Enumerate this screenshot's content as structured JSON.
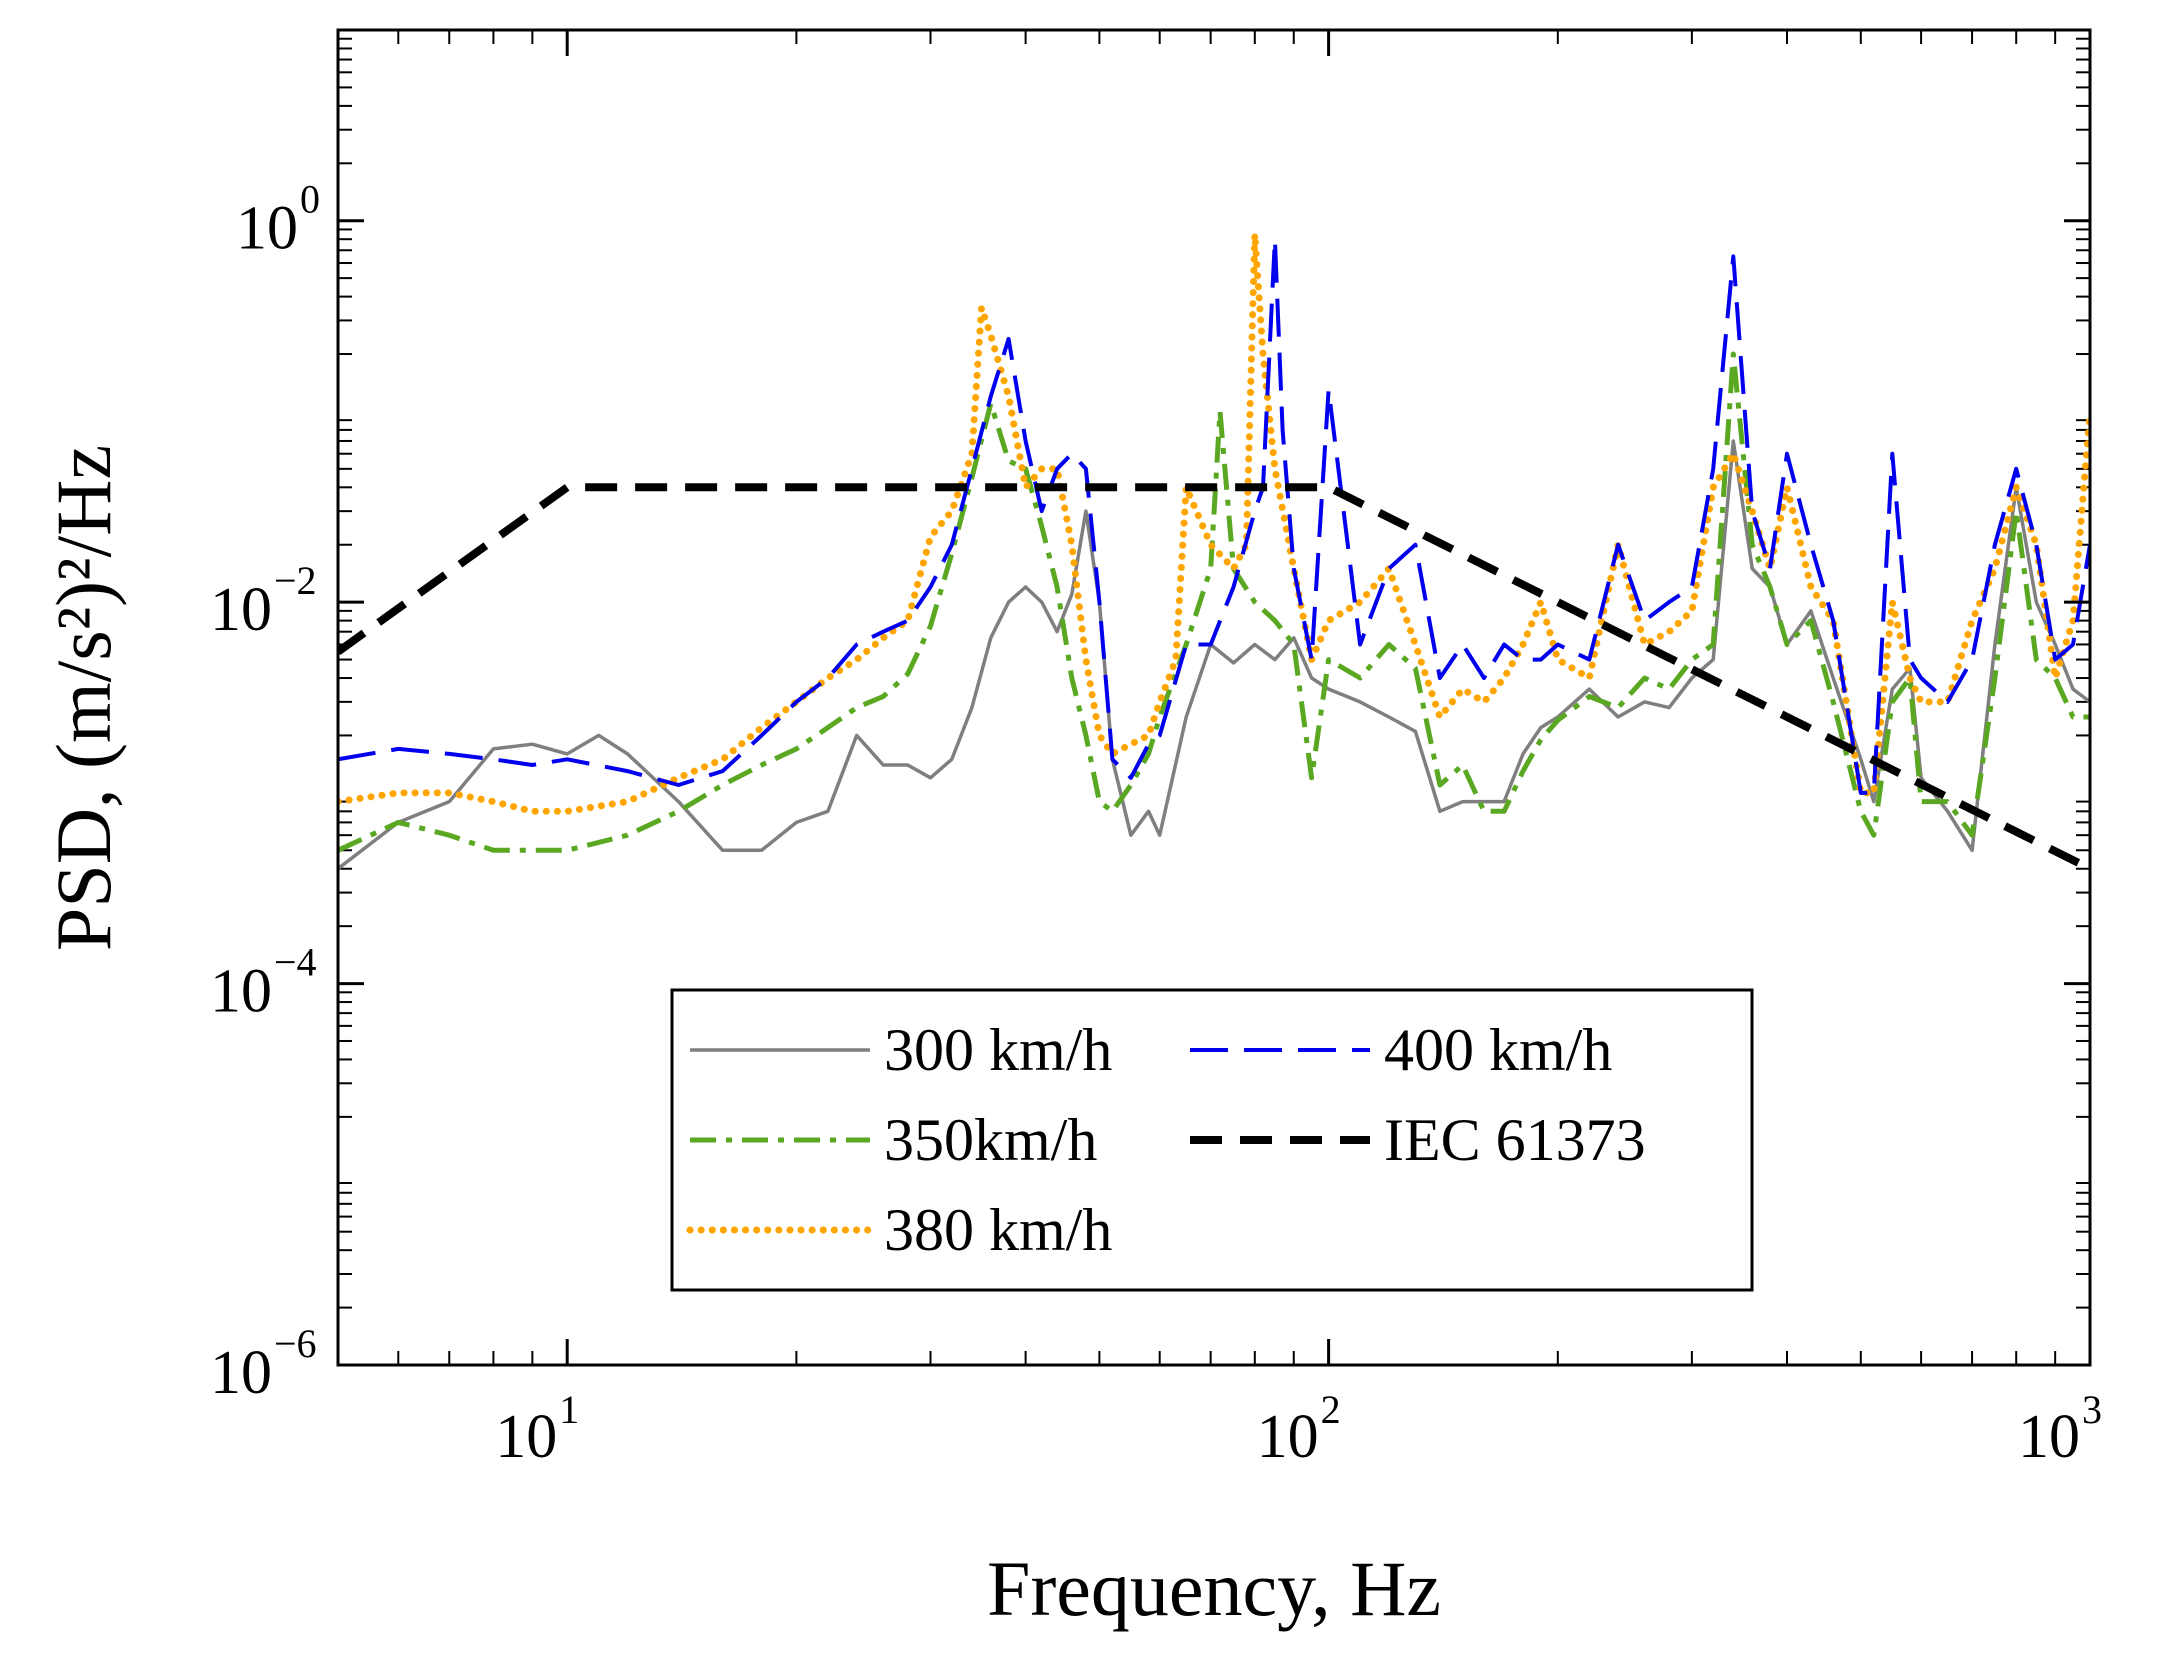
{
  "chart_data": {
    "type": "line",
    "title": "",
    "xlabel": "Frequency, Hz",
    "ylabel": "PSD, (m/s²)²/Hz",
    "xscale": "log",
    "yscale": "log",
    "xlim": [
      5,
      1000
    ],
    "ylim": [
      1e-06,
      10
    ],
    "x_ticks": [
      {
        "value": 10,
        "base": "10",
        "exp": "1"
      },
      {
        "value": 100,
        "base": "10",
        "exp": "2"
      },
      {
        "value": 1000,
        "base": "10",
        "exp": "3"
      }
    ],
    "y_ticks": [
      {
        "value": 1e-06,
        "base": "10",
        "exp": "−6"
      },
      {
        "value": 0.0001,
        "base": "10",
        "exp": "−4"
      },
      {
        "value": 0.01,
        "base": "10",
        "exp": "−2"
      },
      {
        "value": 1,
        "base": "10",
        "exp": "0"
      }
    ],
    "grid": false,
    "legend_position": "bottom-center",
    "series": [
      {
        "name": "300 km/h",
        "color": "#7f7f7f",
        "style": "solid",
        "x": [
          5,
          6,
          7,
          8,
          9,
          10,
          11,
          12,
          14,
          16,
          18,
          20,
          22,
          24,
          26,
          28,
          30,
          32,
          34,
          36,
          38,
          40,
          42,
          44,
          46,
          48,
          50,
          52,
          55,
          58,
          60,
          65,
          70,
          75,
          80,
          85,
          90,
          95,
          100,
          110,
          120,
          130,
          140,
          150,
          160,
          170,
          180,
          190,
          200,
          220,
          240,
          260,
          280,
          300,
          320,
          340,
          360,
          380,
          400,
          430,
          460,
          500,
          520,
          550,
          580,
          600,
          650,
          700,
          750,
          800,
          850,
          900,
          950,
          1000
        ],
        "y": [
          0.0004,
          0.0007,
          0.0009,
          0.0017,
          0.0018,
          0.0016,
          0.002,
          0.0016,
          0.0009,
          0.0005,
          0.0005,
          0.0007,
          0.0008,
          0.002,
          0.0014,
          0.0014,
          0.0012,
          0.0015,
          0.0028,
          0.0065,
          0.01,
          0.012,
          0.01,
          0.007,
          0.011,
          0.03,
          0.01,
          0.0015,
          0.0006,
          0.0008,
          0.0006,
          0.0025,
          0.006,
          0.0048,
          0.006,
          0.005,
          0.0065,
          0.004,
          0.0035,
          0.003,
          0.0025,
          0.0021,
          0.0008,
          0.0009,
          0.0009,
          0.0009,
          0.0016,
          0.0022,
          0.0025,
          0.0035,
          0.0025,
          0.003,
          0.0028,
          0.004,
          0.005,
          0.07,
          0.015,
          0.012,
          0.006,
          0.009,
          0.004,
          0.0015,
          0.0009,
          0.0035,
          0.0045,
          0.0012,
          0.0008,
          0.0005,
          0.006,
          0.04,
          0.01,
          0.006,
          0.0035,
          0.003
        ]
      },
      {
        "name": "350km/h",
        "color": "#5aa822",
        "style": "dashdot",
        "x": [
          5,
          6,
          7,
          8,
          9,
          10,
          12,
          14,
          16,
          18,
          20,
          22,
          24,
          26,
          28,
          30,
          32,
          34,
          36,
          38,
          40,
          42,
          44,
          46,
          48,
          50,
          52,
          55,
          58,
          60,
          65,
          70,
          72,
          75,
          80,
          85,
          90,
          95,
          100,
          110,
          120,
          130,
          140,
          150,
          160,
          170,
          180,
          190,
          200,
          220,
          240,
          260,
          280,
          300,
          320,
          340,
          360,
          380,
          400,
          430,
          460,
          500,
          520,
          550,
          580,
          600,
          650,
          700,
          750,
          800,
          850,
          900,
          950,
          1000
        ],
        "y": [
          0.0005,
          0.0007,
          0.0006,
          0.0005,
          0.0005,
          0.0005,
          0.0006,
          0.0008,
          0.0011,
          0.0014,
          0.0017,
          0.0022,
          0.0028,
          0.0032,
          0.0042,
          0.0075,
          0.018,
          0.045,
          0.11,
          0.055,
          0.05,
          0.025,
          0.012,
          0.004,
          0.002,
          0.0009,
          0.0008,
          0.0011,
          0.0016,
          0.0025,
          0.006,
          0.015,
          0.1,
          0.015,
          0.01,
          0.008,
          0.006,
          0.0012,
          0.005,
          0.004,
          0.006,
          0.0045,
          0.0011,
          0.0014,
          0.0008,
          0.0008,
          0.0013,
          0.0019,
          0.0024,
          0.0032,
          0.0028,
          0.004,
          0.0035,
          0.005,
          0.006,
          0.2,
          0.02,
          0.012,
          0.006,
          0.008,
          0.003,
          0.0008,
          0.0006,
          0.003,
          0.004,
          0.0009,
          0.0009,
          0.0006,
          0.004,
          0.03,
          0.005,
          0.004,
          0.0025,
          0.0025
        ]
      },
      {
        "name": "380 km/h",
        "color": "#ffa500",
        "style": "dotted",
        "x": [
          5,
          6,
          7,
          8,
          9,
          10,
          12,
          14,
          16,
          18,
          20,
          22,
          24,
          26,
          28,
          30,
          32,
          34,
          35,
          36,
          38,
          40,
          42,
          44,
          46,
          48,
          50,
          52,
          55,
          58,
          60,
          63,
          65,
          70,
          75,
          78,
          80,
          82,
          85,
          90,
          95,
          100,
          110,
          120,
          130,
          140,
          150,
          160,
          170,
          180,
          190,
          200,
          220,
          240,
          260,
          280,
          300,
          320,
          340,
          360,
          380,
          400,
          430,
          460,
          500,
          520,
          550,
          580,
          600,
          650,
          700,
          750,
          800,
          850,
          900,
          950,
          1000
        ],
        "y": [
          0.0009,
          0.001,
          0.001,
          0.0009,
          0.0008,
          0.0008,
          0.0009,
          0.0012,
          0.0015,
          0.0022,
          0.003,
          0.004,
          0.005,
          0.0065,
          0.008,
          0.022,
          0.03,
          0.06,
          0.35,
          0.25,
          0.12,
          0.04,
          0.05,
          0.05,
          0.02,
          0.005,
          0.002,
          0.0016,
          0.0018,
          0.002,
          0.003,
          0.005,
          0.04,
          0.02,
          0.015,
          0.02,
          0.85,
          0.2,
          0.05,
          0.015,
          0.005,
          0.008,
          0.01,
          0.015,
          0.006,
          0.0025,
          0.0035,
          0.003,
          0.004,
          0.006,
          0.01,
          0.005,
          0.004,
          0.02,
          0.006,
          0.007,
          0.009,
          0.04,
          0.06,
          0.03,
          0.015,
          0.04,
          0.012,
          0.008,
          0.001,
          0.001,
          0.01,
          0.004,
          0.003,
          0.003,
          0.008,
          0.015,
          0.04,
          0.02,
          0.004,
          0.008,
          0.1
        ]
      },
      {
        "name": "400 km/h",
        "color": "#0000ee",
        "style": "dashed",
        "x": [
          5,
          6,
          7,
          8,
          9,
          10,
          12,
          14,
          16,
          18,
          20,
          22,
          24,
          26,
          28,
          30,
          32,
          34,
          36,
          38,
          40,
          42,
          44,
          46,
          48,
          50,
          52,
          55,
          58,
          60,
          65,
          70,
          75,
          80,
          82,
          85,
          87,
          90,
          95,
          100,
          110,
          120,
          130,
          140,
          150,
          160,
          170,
          180,
          190,
          200,
          220,
          240,
          260,
          280,
          300,
          320,
          340,
          360,
          380,
          400,
          430,
          460,
          500,
          520,
          550,
          580,
          600,
          650,
          700,
          750,
          800,
          850,
          900,
          950,
          1000
        ],
        "y": [
          0.0015,
          0.0017,
          0.0016,
          0.0015,
          0.0014,
          0.0015,
          0.0013,
          0.0011,
          0.0013,
          0.002,
          0.003,
          0.004,
          0.006,
          0.007,
          0.008,
          0.012,
          0.02,
          0.05,
          0.12,
          0.24,
          0.07,
          0.03,
          0.05,
          0.06,
          0.05,
          0.01,
          0.0015,
          0.0012,
          0.0018,
          0.002,
          0.006,
          0.006,
          0.012,
          0.03,
          0.04,
          0.8,
          0.08,
          0.015,
          0.005,
          0.13,
          0.006,
          0.015,
          0.02,
          0.004,
          0.006,
          0.004,
          0.006,
          0.005,
          0.005,
          0.006,
          0.005,
          0.02,
          0.008,
          0.01,
          0.012,
          0.05,
          0.65,
          0.03,
          0.015,
          0.06,
          0.02,
          0.008,
          0.001,
          0.001,
          0.06,
          0.005,
          0.004,
          0.003,
          0.005,
          0.02,
          0.05,
          0.02,
          0.005,
          0.006,
          0.02
        ]
      },
      {
        "name": "IEC 61373",
        "color": "#000000",
        "style": "thickdashed",
        "x": [
          5,
          10,
          100,
          1000
        ],
        "y": [
          0.0055,
          0.04,
          0.04,
          0.0004
        ]
      }
    ],
    "legend": [
      {
        "label": "300 km/h",
        "series": 0,
        "column": 0,
        "row": 0
      },
      {
        "label": "400 km/h",
        "series": 3,
        "column": 1,
        "row": 0
      },
      {
        "label": "350km/h",
        "series": 1,
        "column": 0,
        "row": 1
      },
      {
        "label": "IEC 61373",
        "series": 4,
        "column": 1,
        "row": 1
      },
      {
        "label": "380 km/h",
        "series": 2,
        "column": 0,
        "row": 2
      }
    ]
  }
}
